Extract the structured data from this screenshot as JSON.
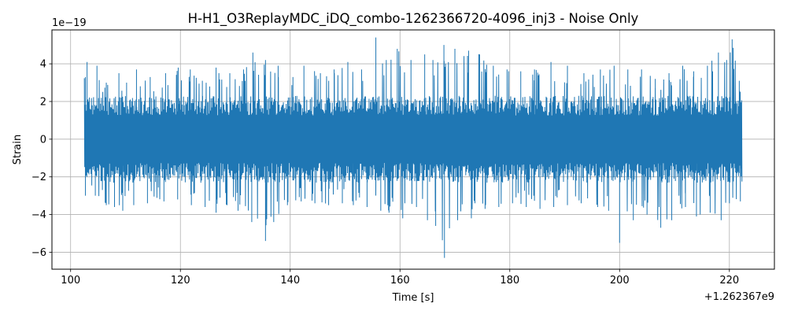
{
  "chart_data": {
    "type": "line",
    "title": "H-H1_O3ReplayMDC_iDQ_combo-1262366720-4096_inj3 - Noise Only",
    "xlabel": "Time [s]",
    "ylabel": "Strain",
    "x_offset_label": "+1.262367e9",
    "y_scale_label": "1e−19",
    "xlim": [
      96.6,
      228.2
    ],
    "ylim": [
      -6.9,
      5.8
    ],
    "x_ticks": [
      100,
      120,
      140,
      160,
      180,
      200,
      220
    ],
    "x_tick_labels": [
      "100",
      "120",
      "140",
      "160",
      "180",
      "200",
      "220"
    ],
    "y_ticks": [
      -6,
      -4,
      -2,
      0,
      2,
      4
    ],
    "y_tick_labels": [
      "−6",
      "−4",
      "−2",
      "0",
      "2",
      "4"
    ],
    "grid": true,
    "series": [
      {
        "color": "#1f77b4",
        "x_range": [
          102.5,
          222.3
        ],
        "core_amplitude": 2.1,
        "upper_peaks": [
          [
            102.7,
            3.3
          ],
          [
            103.0,
            4.1
          ],
          [
            104.8,
            3.9
          ],
          [
            106.5,
            3.0
          ],
          [
            108.8,
            3.5
          ],
          [
            110.2,
            3.0
          ],
          [
            112.0,
            3.7
          ],
          [
            114.5,
            3.3
          ],
          [
            117.3,
            3.5
          ],
          [
            119.6,
            3.8
          ],
          [
            121.8,
            3.7
          ],
          [
            124.0,
            3.1
          ],
          [
            126.5,
            3.8
          ],
          [
            129.0,
            3.5
          ],
          [
            131.5,
            3.7
          ],
          [
            133.2,
            4.6
          ],
          [
            135.5,
            4.2
          ],
          [
            137.8,
            3.9
          ],
          [
            140.5,
            3.3
          ],
          [
            142.5,
            3.9
          ],
          [
            145.5,
            3.5
          ],
          [
            148.0,
            3.7
          ],
          [
            150.5,
            4.1
          ],
          [
            153.0,
            3.7
          ],
          [
            155.6,
            5.4
          ],
          [
            157.5,
            4.2
          ],
          [
            159.5,
            4.8
          ],
          [
            162.0,
            4.2
          ],
          [
            164.5,
            4.5
          ],
          [
            166.0,
            4.2
          ],
          [
            168.0,
            5.0
          ],
          [
            170.0,
            4.8
          ],
          [
            172.5,
            4.7
          ],
          [
            174.5,
            4.5
          ],
          [
            177.0,
            3.9
          ],
          [
            179.5,
            3.7
          ],
          [
            182.0,
            3.6
          ],
          [
            184.5,
            3.7
          ],
          [
            187.5,
            4.1
          ],
          [
            190.5,
            3.9
          ],
          [
            193.5,
            3.5
          ],
          [
            196.5,
            3.7
          ],
          [
            199.0,
            3.9
          ],
          [
            201.5,
            3.7
          ],
          [
            204.0,
            3.7
          ],
          [
            206.5,
            3.2
          ],
          [
            209.0,
            3.5
          ],
          [
            211.5,
            3.9
          ],
          [
            213.5,
            3.6
          ],
          [
            216.0,
            3.9
          ],
          [
            218.0,
            4.6
          ],
          [
            219.5,
            4.2
          ],
          [
            220.5,
            5.3
          ],
          [
            221.8,
            3.1
          ]
        ],
        "lower_troughs": [
          [
            102.7,
            -3.0
          ],
          [
            104.5,
            -3.0
          ],
          [
            106.5,
            -3.5
          ],
          [
            108.0,
            -3.6
          ],
          [
            109.5,
            -3.8
          ],
          [
            111.5,
            -3.5
          ],
          [
            114.0,
            -3.4
          ],
          [
            117.0,
            -3.3
          ],
          [
            119.5,
            -3.2
          ],
          [
            122.0,
            -3.5
          ],
          [
            124.5,
            -3.6
          ],
          [
            126.5,
            -3.9
          ],
          [
            128.5,
            -3.5
          ],
          [
            130.5,
            -3.8
          ],
          [
            133.0,
            -4.4
          ],
          [
            135.5,
            -5.4
          ],
          [
            137.0,
            -4.4
          ],
          [
            139.5,
            -3.5
          ],
          [
            142.0,
            -3.3
          ],
          [
            144.5,
            -3.4
          ],
          [
            147.0,
            -3.5
          ],
          [
            149.5,
            -3.4
          ],
          [
            151.5,
            -3.5
          ],
          [
            154.0,
            -3.6
          ],
          [
            156.5,
            -3.8
          ],
          [
            158.0,
            -3.9
          ],
          [
            160.5,
            -4.2
          ],
          [
            163.0,
            -3.6
          ],
          [
            165.0,
            -4.3
          ],
          [
            166.5,
            -4.6
          ],
          [
            168.1,
            -6.3
          ],
          [
            170.5,
            -4.3
          ],
          [
            173.0,
            -4.2
          ],
          [
            175.5,
            -3.7
          ],
          [
            178.0,
            -3.6
          ],
          [
            180.5,
            -3.4
          ],
          [
            183.0,
            -3.6
          ],
          [
            185.5,
            -3.7
          ],
          [
            188.0,
            -3.6
          ],
          [
            190.5,
            -3.5
          ],
          [
            193.0,
            -3.4
          ],
          [
            196.0,
            -3.6
          ],
          [
            198.0,
            -3.8
          ],
          [
            200.0,
            -5.5
          ],
          [
            202.5,
            -4.3
          ],
          [
            205.0,
            -4.0
          ],
          [
            207.5,
            -4.7
          ],
          [
            209.5,
            -4.3
          ],
          [
            212.0,
            -3.6
          ],
          [
            214.0,
            -4.1
          ],
          [
            216.5,
            -3.9
          ],
          [
            218.5,
            -4.3
          ],
          [
            220.0,
            -3.4
          ],
          [
            222.0,
            -3.3
          ]
        ]
      }
    ]
  }
}
